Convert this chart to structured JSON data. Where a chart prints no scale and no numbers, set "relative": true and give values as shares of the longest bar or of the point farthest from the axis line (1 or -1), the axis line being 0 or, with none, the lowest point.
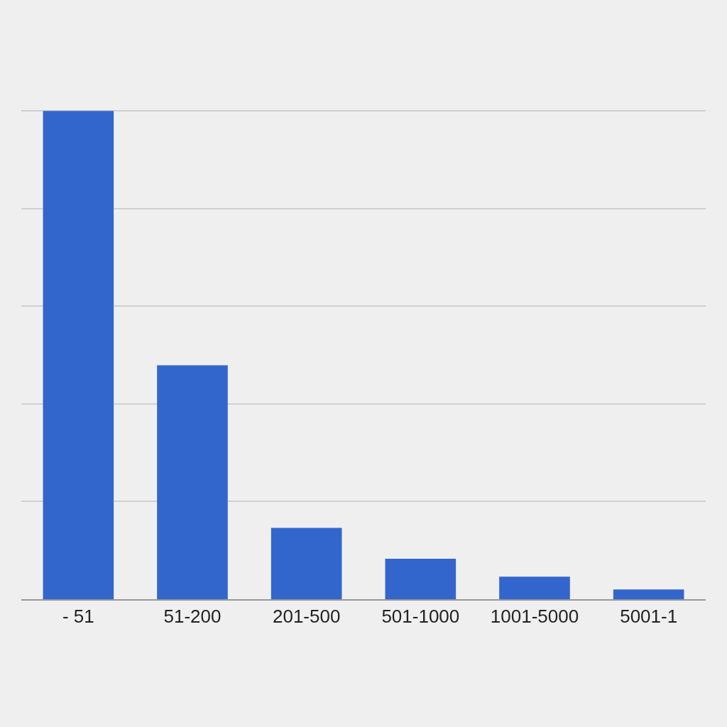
{
  "chart_data": {
    "type": "bar",
    "relative": true,
    "categories": [
      "- 51",
      "51-200",
      "201-500",
      "501-1000",
      "1001-5000",
      "5001-1"
    ],
    "values": [
      1,
      0.479,
      0.146,
      0.083,
      0.046,
      0.02
    ],
    "color": "#3366cc",
    "grid": "y"
  }
}
